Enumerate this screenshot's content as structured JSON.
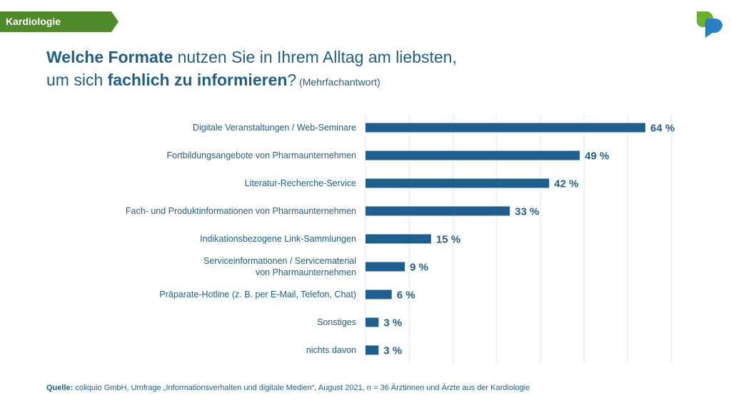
{
  "tag": {
    "label": "Kardiologie",
    "color": "#4f8a2b"
  },
  "title": {
    "line1_bold": "Welche Formate",
    "line1_rest": " nutzen Sie in Ihrem Alltag am liebsten,",
    "line2_start": "um sich ",
    "line2_bold": "fachlich zu informieren",
    "line2_end": "?",
    "note": " (Mehrfachantwort)"
  },
  "source": {
    "label": "Quelle:",
    "text": " coliquio GmbH, Umfrage „Informationsverhalten und digitale Medien“, August 2021,  n = 36 Ärztinnen und Ärzte aus der Kardiologie"
  },
  "chart_data": {
    "type": "bar",
    "orientation": "horizontal",
    "categories": [
      "Digitale Veranstaltungen / Web-Seminare",
      "Fortbildungsangebote von Pharmaunternehmen",
      "Literatur-Recherche-Service",
      "Fach- und Produktinformationen von Pharmaunternehmen",
      "Indikationsbezogene Link-Sammlungen",
      "Serviceinformationen / Servicematerial\nvon Pharmaunternehmen",
      "Präparate-Hotline (z. B. per E-Mail, Telefon, Chat)",
      "Sonstiges",
      "nichts davon"
    ],
    "values": [
      64,
      49,
      42,
      33,
      15,
      9,
      6,
      3,
      3
    ],
    "data_labels": [
      "64 %",
      "49 %",
      "42 %",
      "33 %",
      "15 %",
      "9 %",
      "6 %",
      "3 %",
      "3 %"
    ],
    "xlim": [
      0,
      70
    ],
    "grid": true,
    "bar_color": "#1e5f8f",
    "grid_color": "#dbe9f6"
  }
}
